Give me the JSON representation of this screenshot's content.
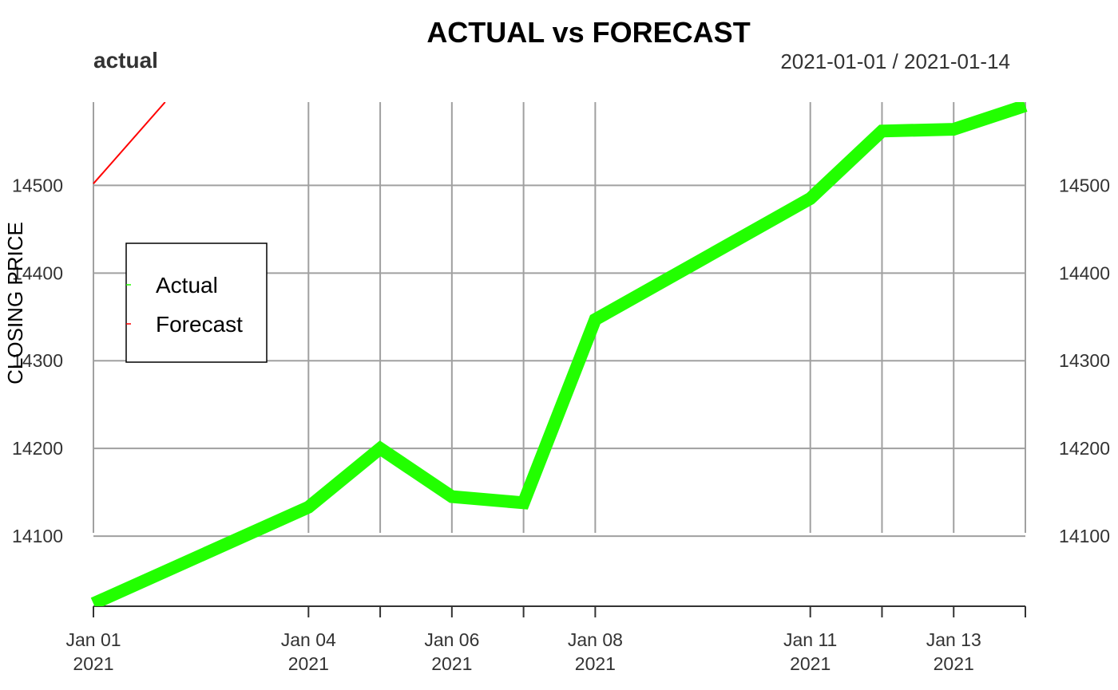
{
  "chart_data": {
    "type": "line",
    "title": "ACTUAL vs FORECAST",
    "subtitle": "actual",
    "date_range_label": "2021-01-01 / 2021-01-14",
    "ylabel": "CLOSING PRICE",
    "xlabel": "",
    "x_dates": [
      "2021-01-01",
      "2021-01-04",
      "2021-01-05",
      "2021-01-06",
      "2021-01-07",
      "2021-01-08",
      "2021-01-11",
      "2021-01-12",
      "2021-01-13",
      "2021-01-14"
    ],
    "x_tick_dates": [
      "2021-01-01",
      "2021-01-04",
      "2021-01-05",
      "2021-01-06",
      "2021-01-07",
      "2021-01-08",
      "2021-01-11",
      "2021-01-12",
      "2021-01-13",
      "2021-01-14"
    ],
    "x_tick_labels": [
      {
        "date": "2021-01-01",
        "line1": "Jan 01",
        "line2": "2021"
      },
      {
        "date": "2021-01-04",
        "line1": "Jan 04",
        "line2": "2021"
      },
      {
        "date": "2021-01-06",
        "line1": "Jan 06",
        "line2": "2021"
      },
      {
        "date": "2021-01-08",
        "line1": "Jan 08",
        "line2": "2021"
      },
      {
        "date": "2021-01-11",
        "line1": "Jan 11",
        "line2": "2021"
      },
      {
        "date": "2021-01-13",
        "line1": "Jan 13",
        "line2": "2021"
      }
    ],
    "y_ticks": [
      14100,
      14200,
      14300,
      14400,
      14500
    ],
    "ylim": [
      14020,
      14595
    ],
    "grid": true,
    "legend_position": "left",
    "series": [
      {
        "name": "Actual",
        "color": "#22ff00",
        "values": [
          14023,
          14133,
          14200,
          14145,
          14138,
          14347,
          14485,
          14562,
          14564,
          14591
        ]
      },
      {
        "name": "Forecast",
        "color": "#ff0000",
        "dates": [
          "2021-01-01",
          "2021-01-02"
        ],
        "values": [
          14502,
          14595
        ]
      }
    ]
  }
}
